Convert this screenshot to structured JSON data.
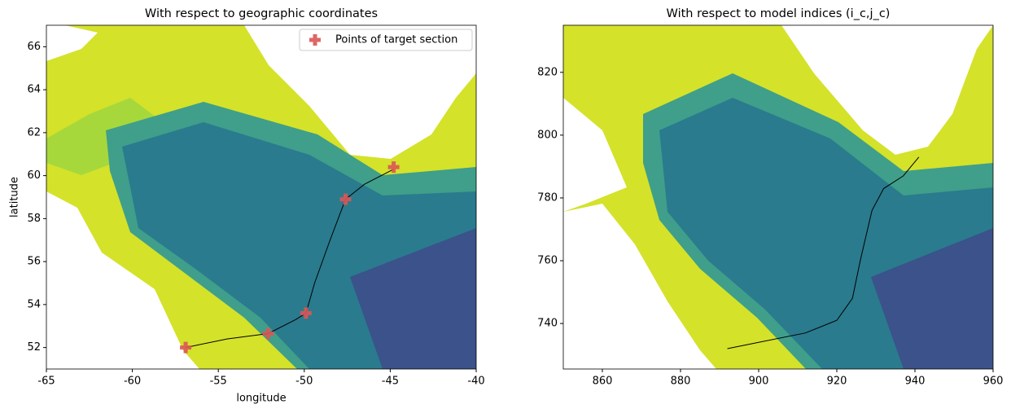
{
  "chart_data": [
    {
      "type": "scatter",
      "title": "With respect to geographic coordinates",
      "xlabel": "longitude",
      "ylabel": "latitude",
      "xlim": [
        -65,
        -40
      ],
      "xticks": [
        -65,
        -60,
        -55,
        -50,
        -45,
        -40
      ],
      "ylim": [
        51,
        67
      ],
      "yticks": [
        52,
        54,
        56,
        58,
        60,
        62,
        64,
        66
      ],
      "legend": "upper right",
      "series": [
        {
          "name": "Points of target section",
          "color": "#dd5555",
          "x": [
            -56.9,
            -52.1,
            -49.9,
            -47.6,
            -44.8
          ],
          "y": [
            52.0,
            52.65,
            53.6,
            58.9,
            60.4
          ]
        }
      ],
      "line": {
        "color": "#000000",
        "x": [
          -56.9,
          -54.5,
          -52.1,
          -50.5,
          -49.9,
          -49.4,
          -48.5,
          -47.6,
          -46.5,
          -44.8
        ],
        "y": [
          52.0,
          52.4,
          52.65,
          53.3,
          53.6,
          55.0,
          57.0,
          58.9,
          59.6,
          60.3
        ]
      }
    },
    {
      "type": "line",
      "title": "With respect to model indices (i_c,j_c)",
      "xlim": [
        850,
        960
      ],
      "xticks": [
        860,
        880,
        900,
        920,
        940,
        960
      ],
      "ylim": [
        725.5,
        835
      ],
      "yticks": [
        740,
        760,
        780,
        800,
        820
      ],
      "line": {
        "color": "#000000",
        "x": [
          892,
          900,
          912,
          920,
          924,
          926,
          929,
          932,
          937,
          941
        ],
        "y": [
          732,
          734,
          737,
          741,
          748,
          760,
          776,
          783,
          787,
          793
        ]
      }
    }
  ]
}
